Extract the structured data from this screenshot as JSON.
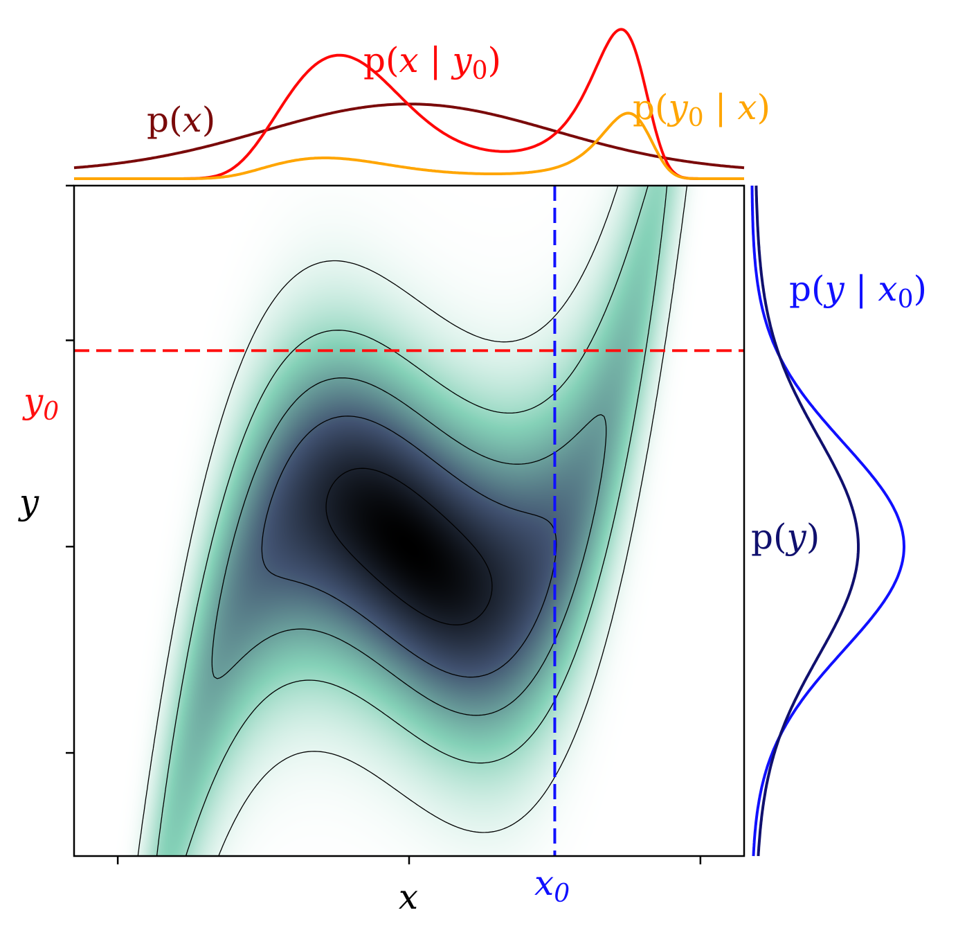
{
  "chart_data": {
    "type": "heatmap",
    "title": "",
    "xlabel": "x",
    "ylabel": "y",
    "xlim": [
      -2.3,
      2.3
    ],
    "ylim": [
      -3.0,
      3.5
    ],
    "x_ticks": [
      -2,
      0,
      2
    ],
    "y_ticks": [
      -2,
      0,
      2
    ],
    "x0": {
      "label": "x",
      "sub": "0",
      "value": 1.0,
      "color": "#1010ff"
    },
    "y0": {
      "label": "y",
      "sub": "0",
      "value": 1.9,
      "color": "#ff1010"
    },
    "joint_density": {
      "form": "exp(-(x^2 + (y - (x^3 - x))^2) / 2)",
      "colormap": "bone_r",
      "contour_levels": [
        0.05,
        0.2,
        0.4,
        0.6,
        0.85
      ],
      "contour_color": "#000000"
    },
    "top_marginals": [
      {
        "name": "p(x)",
        "text": {
          "pre": "p(",
          "var": "x",
          "sub": "",
          "bar": "",
          "var2": "",
          "sub2": "",
          "post": ")"
        },
        "color": "#7a0a0a"
      },
      {
        "name": "p(x | y0)",
        "text": {
          "pre": "p(",
          "var": "x",
          "sub": "",
          "bar": " | ",
          "var2": "y",
          "sub2": "0",
          "post": ")"
        },
        "color": "#ff0808"
      },
      {
        "name": "p(y0 | x)",
        "text": {
          "pre": "p(",
          "var": "y",
          "sub": "0",
          "bar": " | ",
          "var2": "x",
          "sub2": "",
          "post": ")"
        },
        "color": "#ffa500"
      }
    ],
    "right_marginals": [
      {
        "name": "p(y | x0)",
        "text": {
          "pre": "p(",
          "var": "y",
          "sub": "",
          "bar": " | ",
          "var2": "x",
          "sub2": "0",
          "post": ")"
        },
        "color": "#1010ff"
      },
      {
        "name": "p(y)",
        "text": {
          "pre": "p(",
          "var": "y",
          "sub": "",
          "bar": "",
          "var2": "",
          "sub2": "",
          "post": ")"
        },
        "color": "#10106e"
      }
    ]
  }
}
